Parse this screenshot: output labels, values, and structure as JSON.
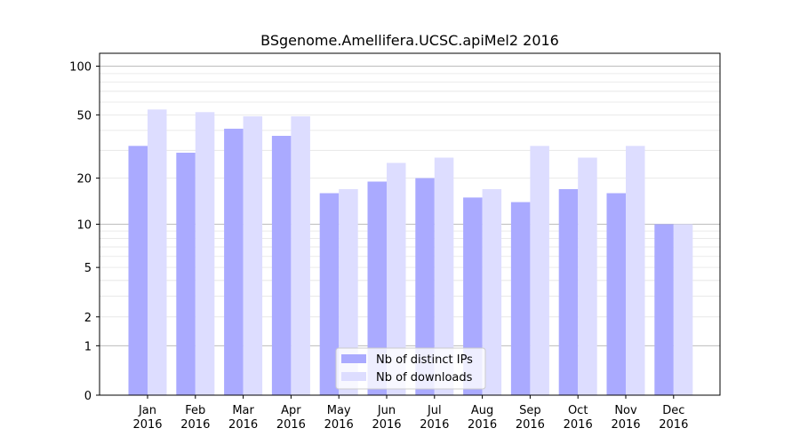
{
  "chart_data": {
    "type": "bar",
    "title": "BSgenome.Amellifera.UCSC.apiMel2 2016",
    "xlabel": "",
    "ylabel": "",
    "yscale": "log(1+y)",
    "ylim": [
      0,
      120
    ],
    "yticks": [
      0,
      1,
      2,
      5,
      10,
      20,
      50,
      100
    ],
    "categories": [
      [
        "Jan",
        "2016"
      ],
      [
        "Feb",
        "2016"
      ],
      [
        "Mar",
        "2016"
      ],
      [
        "Apr",
        "2016"
      ],
      [
        "May",
        "2016"
      ],
      [
        "Jun",
        "2016"
      ],
      [
        "Jul",
        "2016"
      ],
      [
        "Aug",
        "2016"
      ],
      [
        "Sep",
        "2016"
      ],
      [
        "Oct",
        "2016"
      ],
      [
        "Nov",
        "2016"
      ],
      [
        "Dec",
        "2016"
      ]
    ],
    "series": [
      {
        "name": "Nb of distinct IPs",
        "color": "#aaaaff",
        "values": [
          32,
          29,
          41,
          37,
          16,
          19,
          20,
          15,
          14,
          17,
          16,
          10
        ]
      },
      {
        "name": "Nb of downloads",
        "color": "#ddddff",
        "values": [
          54,
          52,
          49,
          49,
          17,
          25,
          27,
          17,
          32,
          27,
          32,
          10
        ]
      }
    ],
    "legend_position": "lower-center",
    "grid": true
  }
}
